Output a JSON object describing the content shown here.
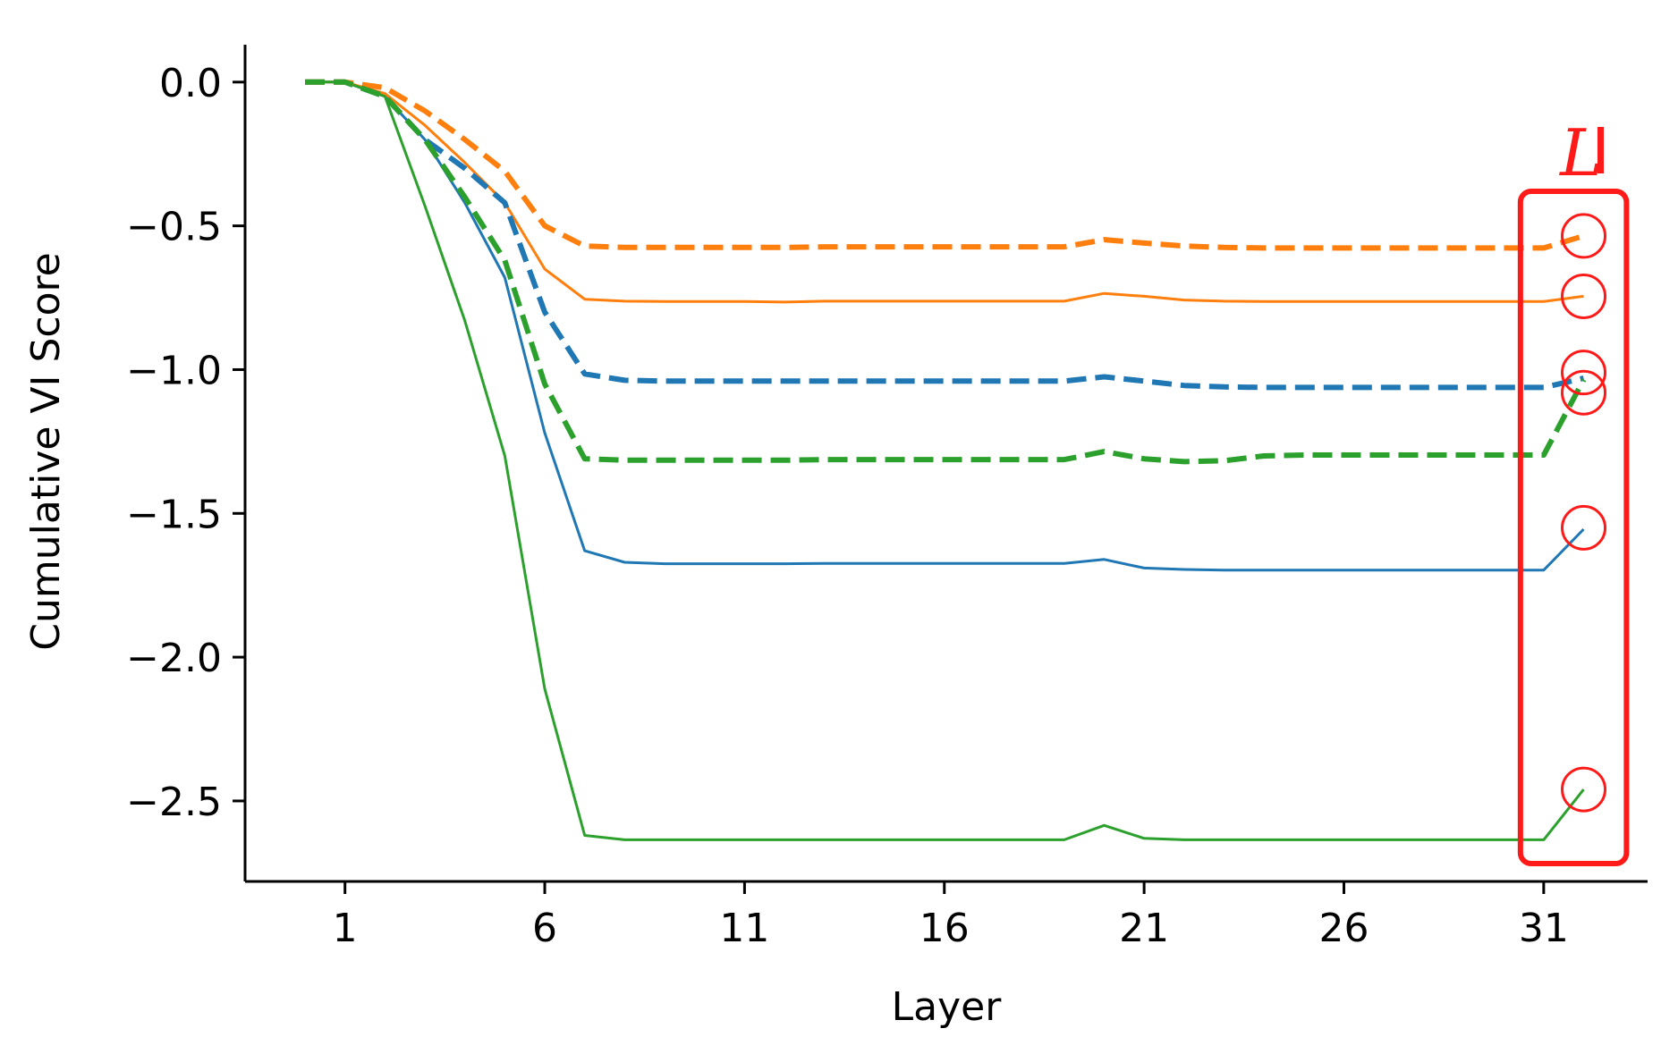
{
  "chart_data": {
    "type": "line",
    "title": "",
    "xlabel": "Layer",
    "ylabel": "Cumulative VI Score",
    "xlim": [
      -1.5,
      33.6
    ],
    "ylim": [
      -2.78,
      0.13
    ],
    "xticks": [
      1,
      6,
      11,
      16,
      21,
      26,
      31
    ],
    "xtick_labels": [
      "1",
      "6",
      "11",
      "16",
      "21",
      "26",
      "31"
    ],
    "yticks": [
      0.0,
      -0.5,
      -1.0,
      -1.5,
      -2.0,
      -2.5
    ],
    "ytick_labels": [
      "0.0",
      "−0.5",
      "−1.0",
      "−1.5",
      "−2.0",
      "−2.5"
    ],
    "grid": false,
    "series": [
      {
        "color": "#1f77b4",
        "dash": "solid",
        "points": [
          [
            0,
            0
          ],
          [
            1,
            0
          ],
          [
            2,
            -0.05
          ],
          [
            3,
            -0.2
          ],
          [
            4,
            -0.42
          ],
          [
            5,
            -0.68
          ],
          [
            6,
            -1.22
          ],
          [
            7,
            -1.63
          ],
          [
            8,
            -1.67
          ],
          [
            9,
            -1.675
          ],
          [
            10,
            -1.675
          ],
          [
            11,
            -1.675
          ],
          [
            12,
            -1.675
          ],
          [
            13,
            -1.674
          ],
          [
            14,
            -1.674
          ],
          [
            15,
            -1.674
          ],
          [
            16,
            -1.674
          ],
          [
            17,
            -1.674
          ],
          [
            18,
            -1.674
          ],
          [
            19,
            -1.674
          ],
          [
            20,
            -1.66
          ],
          [
            21,
            -1.69
          ],
          [
            22,
            -1.695
          ],
          [
            23,
            -1.697
          ],
          [
            24,
            -1.697
          ],
          [
            25,
            -1.697
          ],
          [
            26,
            -1.697
          ],
          [
            27,
            -1.697
          ],
          [
            28,
            -1.697
          ],
          [
            29,
            -1.697
          ],
          [
            30,
            -1.697
          ],
          [
            31,
            -1.697
          ],
          [
            32,
            -1.555
          ]
        ]
      },
      {
        "color": "#ff7f0e",
        "dash": "solid",
        "points": [
          [
            0,
            0
          ],
          [
            1,
            0
          ],
          [
            2,
            -0.04
          ],
          [
            3,
            -0.15
          ],
          [
            4,
            -0.28
          ],
          [
            5,
            -0.42
          ],
          [
            6,
            -0.65
          ],
          [
            7,
            -0.755
          ],
          [
            8,
            -0.762
          ],
          [
            9,
            -0.763
          ],
          [
            10,
            -0.763
          ],
          [
            11,
            -0.763
          ],
          [
            12,
            -0.765
          ],
          [
            13,
            -0.762
          ],
          [
            14,
            -0.762
          ],
          [
            15,
            -0.762
          ],
          [
            16,
            -0.762
          ],
          [
            17,
            -0.762
          ],
          [
            18,
            -0.762
          ],
          [
            19,
            -0.762
          ],
          [
            20,
            -0.735
          ],
          [
            21,
            -0.745
          ],
          [
            22,
            -0.758
          ],
          [
            23,
            -0.762
          ],
          [
            24,
            -0.763
          ],
          [
            25,
            -0.763
          ],
          [
            26,
            -0.763
          ],
          [
            27,
            -0.763
          ],
          [
            28,
            -0.763
          ],
          [
            29,
            -0.763
          ],
          [
            30,
            -0.763
          ],
          [
            31,
            -0.763
          ],
          [
            32,
            -0.745
          ]
        ]
      },
      {
        "color": "#2ca02c",
        "dash": "solid",
        "points": [
          [
            0,
            0
          ],
          [
            1,
            0
          ],
          [
            2,
            -0.05
          ],
          [
            3,
            -0.43
          ],
          [
            4,
            -0.83
          ],
          [
            5,
            -1.3
          ],
          [
            6,
            -2.11
          ],
          [
            7,
            -2.62
          ],
          [
            8,
            -2.635
          ],
          [
            9,
            -2.635
          ],
          [
            10,
            -2.635
          ],
          [
            11,
            -2.635
          ],
          [
            12,
            -2.635
          ],
          [
            13,
            -2.635
          ],
          [
            14,
            -2.635
          ],
          [
            15,
            -2.635
          ],
          [
            16,
            -2.635
          ],
          [
            17,
            -2.635
          ],
          [
            18,
            -2.635
          ],
          [
            19,
            -2.635
          ],
          [
            20,
            -2.585
          ],
          [
            21,
            -2.63
          ],
          [
            22,
            -2.635
          ],
          [
            23,
            -2.635
          ],
          [
            24,
            -2.635
          ],
          [
            25,
            -2.635
          ],
          [
            26,
            -2.635
          ],
          [
            27,
            -2.635
          ],
          [
            28,
            -2.635
          ],
          [
            29,
            -2.635
          ],
          [
            30,
            -2.635
          ],
          [
            31,
            -2.635
          ],
          [
            32,
            -2.46
          ]
        ]
      },
      {
        "color": "#1f77b4",
        "dash": "dashed",
        "points": [
          [
            0,
            0
          ],
          [
            1,
            0
          ],
          [
            2,
            -0.05
          ],
          [
            3,
            -0.2
          ],
          [
            4,
            -0.3
          ],
          [
            5,
            -0.42
          ],
          [
            6,
            -0.8
          ],
          [
            7,
            -1.015
          ],
          [
            8,
            -1.037
          ],
          [
            9,
            -1.04
          ],
          [
            10,
            -1.04
          ],
          [
            11,
            -1.04
          ],
          [
            12,
            -1.04
          ],
          [
            13,
            -1.04
          ],
          [
            14,
            -1.04
          ],
          [
            15,
            -1.04
          ],
          [
            16,
            -1.04
          ],
          [
            17,
            -1.04
          ],
          [
            18,
            -1.04
          ],
          [
            19,
            -1.04
          ],
          [
            20,
            -1.025
          ],
          [
            21,
            -1.04
          ],
          [
            22,
            -1.055
          ],
          [
            23,
            -1.06
          ],
          [
            24,
            -1.062
          ],
          [
            25,
            -1.062
          ],
          [
            26,
            -1.062
          ],
          [
            27,
            -1.062
          ],
          [
            28,
            -1.062
          ],
          [
            29,
            -1.062
          ],
          [
            30,
            -1.062
          ],
          [
            31,
            -1.062
          ],
          [
            32,
            -1.03
          ]
        ]
      },
      {
        "color": "#ff7f0e",
        "dash": "dashed",
        "points": [
          [
            0,
            0
          ],
          [
            1,
            0
          ],
          [
            2,
            -0.02
          ],
          [
            3,
            -0.1
          ],
          [
            4,
            -0.2
          ],
          [
            5,
            -0.31
          ],
          [
            6,
            -0.5
          ],
          [
            7,
            -0.57
          ],
          [
            8,
            -0.575
          ],
          [
            9,
            -0.575
          ],
          [
            10,
            -0.575
          ],
          [
            11,
            -0.575
          ],
          [
            12,
            -0.575
          ],
          [
            13,
            -0.573
          ],
          [
            14,
            -0.573
          ],
          [
            15,
            -0.573
          ],
          [
            16,
            -0.573
          ],
          [
            17,
            -0.573
          ],
          [
            18,
            -0.573
          ],
          [
            19,
            -0.573
          ],
          [
            20,
            -0.548
          ],
          [
            21,
            -0.56
          ],
          [
            22,
            -0.57
          ],
          [
            23,
            -0.575
          ],
          [
            24,
            -0.577
          ],
          [
            25,
            -0.577
          ],
          [
            26,
            -0.577
          ],
          [
            27,
            -0.577
          ],
          [
            28,
            -0.577
          ],
          [
            29,
            -0.577
          ],
          [
            30,
            -0.577
          ],
          [
            31,
            -0.577
          ],
          [
            32,
            -0.535
          ]
        ]
      },
      {
        "color": "#2ca02c",
        "dash": "dashed",
        "points": [
          [
            0,
            0
          ],
          [
            1,
            0
          ],
          [
            2,
            -0.05
          ],
          [
            3,
            -0.2
          ],
          [
            4,
            -0.4
          ],
          [
            5,
            -0.62
          ],
          [
            6,
            -1.05
          ],
          [
            7,
            -1.31
          ],
          [
            8,
            -1.315
          ],
          [
            9,
            -1.315
          ],
          [
            10,
            -1.315
          ],
          [
            11,
            -1.315
          ],
          [
            12,
            -1.315
          ],
          [
            13,
            -1.313
          ],
          [
            14,
            -1.313
          ],
          [
            15,
            -1.313
          ],
          [
            16,
            -1.313
          ],
          [
            17,
            -1.313
          ],
          [
            18,
            -1.313
          ],
          [
            19,
            -1.313
          ],
          [
            20,
            -1.285
          ],
          [
            21,
            -1.31
          ],
          [
            22,
            -1.32
          ],
          [
            23,
            -1.317
          ],
          [
            24,
            -1.3
          ],
          [
            25,
            -1.297
          ],
          [
            26,
            -1.297
          ],
          [
            27,
            -1.297
          ],
          [
            28,
            -1.297
          ],
          [
            29,
            -1.297
          ],
          [
            30,
            -1.297
          ],
          [
            31,
            -1.297
          ],
          [
            32,
            -1.035
          ]
        ]
      }
    ],
    "highlight": {
      "label": "L",
      "color": "#ff1a1a",
      "x_range": [
        31,
        32.4
      ],
      "markers": [
        -0.535,
        -0.745,
        -1.01,
        -1.08,
        -1.55,
        -2.46
      ]
    }
  }
}
